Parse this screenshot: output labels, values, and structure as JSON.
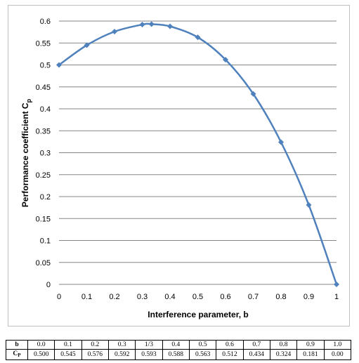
{
  "chart_data": {
    "type": "line",
    "xlabel": "Interference parameter, b",
    "ylabel": "Performance coefficient C",
    "ylabel_subscript": "p",
    "xlim": [
      0,
      1
    ],
    "ylim": [
      0,
      0.6
    ],
    "x_ticks": [
      "0",
      "0.1",
      "0.2",
      "0.3",
      "0.4",
      "0.5",
      "0.6",
      "0.7",
      "0.8",
      "0.9",
      "1"
    ],
    "y_ticks": [
      "0",
      "0.05",
      "0.1",
      "0.15",
      "0.2",
      "0.25",
      "0.3",
      "0.35",
      "0.4",
      "0.45",
      "0.5",
      "0.55",
      "0.6"
    ],
    "grid": "horizontal",
    "line_color": "#4f81bd",
    "marker_color": "#4f81bd",
    "marker": "diamond",
    "series": [
      {
        "x": [
          0,
          0.1,
          0.2,
          0.3,
          0.3333,
          0.4,
          0.5,
          0.6,
          0.7,
          0.8,
          0.9,
          1.0
        ],
        "y": [
          0.5,
          0.545,
          0.576,
          0.592,
          0.593,
          0.588,
          0.563,
          0.512,
          0.434,
          0.324,
          0.181,
          0.0
        ]
      }
    ]
  },
  "table": {
    "row_b_label": "b",
    "row_cp_label": "C",
    "row_cp_subscript": "P",
    "b_values": [
      "0.0",
      "0.1",
      "0.2",
      "0.3",
      "1/3",
      "0.4",
      "0.5",
      "0.6",
      "0.7",
      "0.8",
      "0.9",
      "1.0"
    ],
    "cp_values": [
      "0.500",
      "0.545",
      "0.576",
      "0.592",
      "0.593",
      "0.588",
      "0.563",
      "0.512",
      "0.434",
      "0.324",
      "0.181",
      "0.00"
    ]
  }
}
